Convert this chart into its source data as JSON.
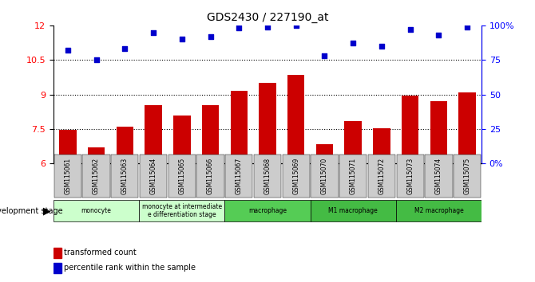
{
  "title": "GDS2430 / 227190_at",
  "samples": [
    "GSM115061",
    "GSM115062",
    "GSM115063",
    "GSM115064",
    "GSM115065",
    "GSM115066",
    "GSM115067",
    "GSM115068",
    "GSM115069",
    "GSM115070",
    "GSM115071",
    "GSM115072",
    "GSM115073",
    "GSM115074",
    "GSM115075"
  ],
  "bar_values": [
    7.45,
    6.7,
    7.6,
    8.55,
    8.1,
    8.55,
    9.15,
    9.5,
    9.85,
    6.85,
    7.85,
    7.55,
    8.95,
    8.7,
    9.1
  ],
  "scatter_values": [
    82,
    75,
    83,
    95,
    90,
    92,
    98,
    99,
    100,
    78,
    87,
    85,
    97,
    93,
    99
  ],
  "bar_color": "#cc0000",
  "scatter_color": "#0000cc",
  "ylim_left": [
    6,
    12
  ],
  "ylim_right": [
    0,
    100
  ],
  "yticks_left": [
    6,
    7.5,
    9,
    10.5,
    12
  ],
  "yticks_right": [
    0,
    25,
    50,
    75,
    100
  ],
  "ytick_labels_right": [
    "0%",
    "25",
    "50",
    "75",
    "100%"
  ],
  "groups": [
    {
      "label": "monocyte",
      "start": 0,
      "end": 3,
      "color": "#ccffcc"
    },
    {
      "label": "monocyte at intermediate differentiation stage",
      "start": 3,
      "end": 6,
      "color": "#ccffcc"
    },
    {
      "label": "macrophage",
      "start": 6,
      "end": 9,
      "color": "#66dd66"
    },
    {
      "label": "M1 macrophage",
      "start": 9,
      "end": 12,
      "color": "#33cc33"
    },
    {
      "label": "M2 macrophage",
      "start": 12,
      "end": 15,
      "color": "#33cc33"
    }
  ],
  "group_label_text": [
    {
      "label": "monocyte",
      "span": [
        0,
        2
      ],
      "color": "#e8f8e8"
    },
    {
      "label": "monocyte at intermediate\ndifferentiation stage",
      "span": [
        3,
        5
      ],
      "color": "#e8f8e8"
    },
    {
      "label": "macrophage",
      "span": [
        6,
        8
      ],
      "color": "#55cc55"
    },
    {
      "label": "M1 macrophage",
      "span": [
        9,
        11
      ],
      "color": "#44bb44"
    },
    {
      "label": "M2 macrophage",
      "span": [
        12,
        14
      ],
      "color": "#44bb44"
    }
  ],
  "dev_stage_label": "development stage",
  "legend_bar_label": "transformed count",
  "legend_scatter_label": "percentile rank within the sample",
  "hline_values": [
    7.5,
    9.0,
    10.5
  ],
  "hline_style": "dotted",
  "bar_width": 0.6
}
